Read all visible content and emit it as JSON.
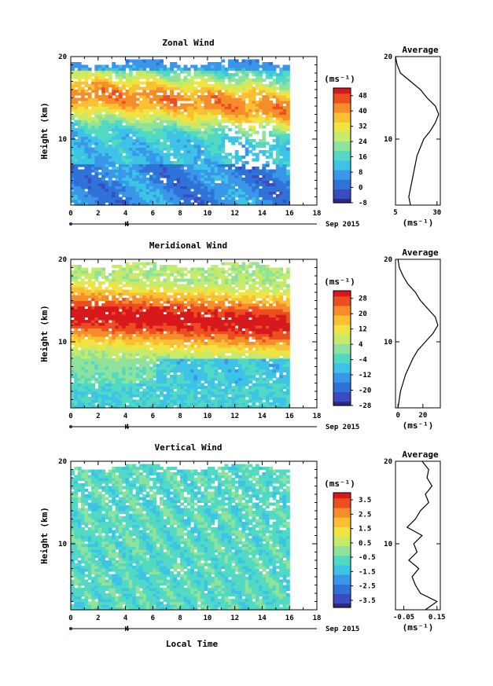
{
  "panels": [
    {
      "title": "Zonal Wind",
      "ylabel": "Height (km)",
      "xticks": [
        "0",
        "2",
        "4",
        "6",
        "8",
        "10",
        "12",
        "14",
        "16",
        "18"
      ],
      "yticks": [
        "10",
        "20"
      ],
      "date_text": "Sep 2015",
      "day_label": "4",
      "unit": "(ms⁻¹)",
      "colorbar_ticks": [
        "48",
        "40",
        "32",
        "24",
        "16",
        "8",
        "0",
        "-8"
      ],
      "colorbar_range": [
        -8,
        52
      ],
      "profile_title": "Average",
      "profile_xticks": [
        "5",
        "30"
      ],
      "profile_yticks": [
        "10",
        "20"
      ],
      "profile_unit": "(ms⁻¹)",
      "profile_xlim": [
        5,
        32
      ]
    },
    {
      "title": "Meridional Wind",
      "ylabel": "Height (km)",
      "xticks": [
        "0",
        "2",
        "4",
        "6",
        "8",
        "10",
        "12",
        "14",
        "16",
        "18"
      ],
      "yticks": [
        "10",
        "20"
      ],
      "date_text": "Sep 2015",
      "day_label": "4",
      "unit": "(ms⁻¹)",
      "colorbar_ticks": [
        "28",
        "20",
        "12",
        "4",
        "-4",
        "-12",
        "-20",
        "-28"
      ],
      "colorbar_range": [
        -28,
        32
      ],
      "profile_title": "Average",
      "profile_xticks": [
        "0",
        "20"
      ],
      "profile_yticks": [
        "10",
        "20"
      ],
      "profile_unit": "(ms⁻¹)",
      "profile_xlim": [
        -2,
        34
      ]
    },
    {
      "title": "Vertical Wind",
      "ylabel": "Height (km)",
      "xticks": [
        "0",
        "2",
        "4",
        "6",
        "8",
        "10",
        "12",
        "14",
        "16",
        "18"
      ],
      "yticks": [
        "10",
        "20"
      ],
      "date_text": "Sep 2015",
      "day_label": "4",
      "unit": "(ms⁻¹)",
      "colorbar_ticks": [
        "3.5",
        "2.5",
        "1.5",
        "0.5",
        "-0.5",
        "-1.5",
        "-2.5",
        "-3.5"
      ],
      "colorbar_range": [
        -4,
        4
      ],
      "profile_title": "Average",
      "profile_xticks": [
        "-0.05",
        "0.15"
      ],
      "profile_yticks": [
        "10",
        "20"
      ],
      "profile_unit": "(ms⁻¹)",
      "profile_xlim": [
        -0.1,
        0.17
      ]
    }
  ],
  "xlabel": "Local Time",
  "colors": {
    "scale": [
      "#2b2a80",
      "#3b4cc0",
      "#2f72d8",
      "#3a96e8",
      "#3cc3e6",
      "#52d9c4",
      "#8fe29c",
      "#c6ea6a",
      "#f0e442",
      "#f9c033",
      "#f58e2a",
      "#ec4e22",
      "#d7191c"
    ]
  },
  "chart_data": [
    {
      "type": "heatmap",
      "title": "Zonal Wind",
      "xlabel": "",
      "ylabel": "Height (km)",
      "xlim": [
        0,
        18
      ],
      "ylim": [
        2,
        20
      ],
      "date": "Sep 2015",
      "z_unit": "ms-1",
      "colorbar_levels": [
        -8,
        0,
        8,
        16,
        24,
        32,
        40,
        48
      ],
      "profile": {
        "title": "Average",
        "xlim": [
          5,
          32
        ],
        "heights": [
          2,
          3,
          4,
          5,
          6,
          7,
          8,
          9,
          10,
          11,
          12,
          13,
          14,
          15,
          16,
          17,
          18,
          19,
          20
        ],
        "values": [
          14,
          13,
          14,
          15,
          16,
          17,
          18,
          20,
          22,
          26,
          29,
          31,
          29,
          24,
          20,
          14,
          8,
          6,
          5
        ]
      }
    },
    {
      "type": "heatmap",
      "title": "Meridional Wind",
      "xlabel": "",
      "ylabel": "Height (km)",
      "xlim": [
        0,
        18
      ],
      "ylim": [
        2,
        20
      ],
      "date": "Sep 2015",
      "z_unit": "ms-1",
      "colorbar_levels": [
        -28,
        -20,
        -12,
        -4,
        4,
        12,
        20,
        28
      ],
      "profile": {
        "title": "Average",
        "xlim": [
          -2,
          34
        ],
        "heights": [
          2,
          3,
          4,
          5,
          6,
          7,
          8,
          9,
          10,
          11,
          12,
          13,
          14,
          15,
          16,
          17,
          18,
          19,
          20
        ],
        "values": [
          0,
          1,
          2,
          4,
          6,
          9,
          12,
          16,
          22,
          28,
          32,
          30,
          24,
          18,
          14,
          8,
          4,
          1,
          0
        ]
      }
    },
    {
      "type": "heatmap",
      "title": "Vertical Wind",
      "xlabel": "Local Time",
      "ylabel": "Height (km)",
      "xlim": [
        0,
        18
      ],
      "ylim": [
        2,
        20
      ],
      "date": "Sep 2015",
      "z_unit": "ms-1",
      "colorbar_levels": [
        -3.5,
        -2.5,
        -1.5,
        -0.5,
        0.5,
        1.5,
        2.5,
        3.5
      ],
      "profile": {
        "title": "Average",
        "xlim": [
          -0.1,
          0.17
        ],
        "heights": [
          2,
          3,
          4,
          5,
          6,
          7,
          8,
          9,
          10,
          11,
          12,
          13,
          14,
          15,
          16,
          17,
          18,
          19,
          20
        ],
        "values": [
          0.08,
          0.15,
          0.05,
          0.02,
          0.0,
          0.04,
          -0.02,
          0.03,
          0.01,
          0.06,
          -0.03,
          0.02,
          0.05,
          0.1,
          0.08,
          0.12,
          0.09,
          0.1,
          0.06
        ]
      }
    }
  ]
}
